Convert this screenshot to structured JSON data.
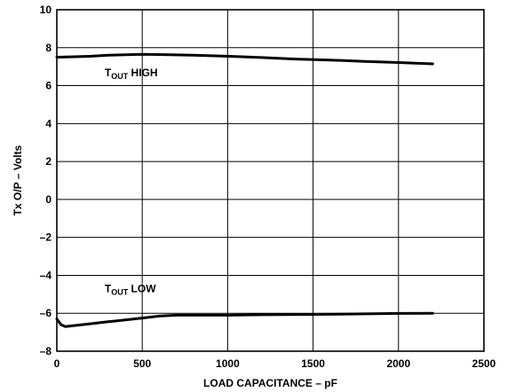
{
  "chart_data": {
    "type": "line",
    "xlabel": "LOAD CAPACITANCE – pF",
    "ylabel": "Tx O/P – Volts",
    "xlim": [
      0,
      2500
    ],
    "ylim": [
      -8,
      10
    ],
    "xticks": [
      0,
      500,
      1000,
      1500,
      2000,
      2500
    ],
    "yticks": [
      -8,
      -6,
      -4,
      -2,
      0,
      2,
      4,
      6,
      8,
      10
    ],
    "xtick_labels": [
      "0",
      "500",
      "1000",
      "1500",
      "2000",
      "2500"
    ],
    "ytick_labels": [
      "–8",
      "–6",
      "–4",
      "–2",
      "0",
      "2",
      "4",
      "6",
      "8",
      "10"
    ],
    "grid": true,
    "series": [
      {
        "label_main": "T",
        "label_sub": "OUT",
        "label_tail": " HIGH",
        "label_x": 280,
        "label_y": 6.5,
        "x": [
          0,
          100,
          200,
          300,
          400,
          500,
          600,
          700,
          800,
          1000,
          1200,
          1400,
          1600,
          1800,
          2000,
          2200
        ],
        "y": [
          7.5,
          7.52,
          7.55,
          7.6,
          7.63,
          7.65,
          7.64,
          7.62,
          7.6,
          7.55,
          7.48,
          7.4,
          7.35,
          7.28,
          7.22,
          7.15
        ]
      },
      {
        "label_main": "T",
        "label_sub": "OUT",
        "label_tail": " LOW",
        "label_x": 280,
        "label_y": -4.9,
        "x": [
          0,
          25,
          50,
          100,
          200,
          300,
          400,
          500,
          600,
          700,
          800,
          1000,
          1200,
          1500,
          1800,
          2000,
          2200
        ],
        "y": [
          -6.3,
          -6.6,
          -6.7,
          -6.65,
          -6.55,
          -6.45,
          -6.35,
          -6.25,
          -6.15,
          -6.1,
          -6.1,
          -6.1,
          -6.08,
          -6.06,
          -6.03,
          -6.01,
          -6.0
        ]
      }
    ]
  }
}
